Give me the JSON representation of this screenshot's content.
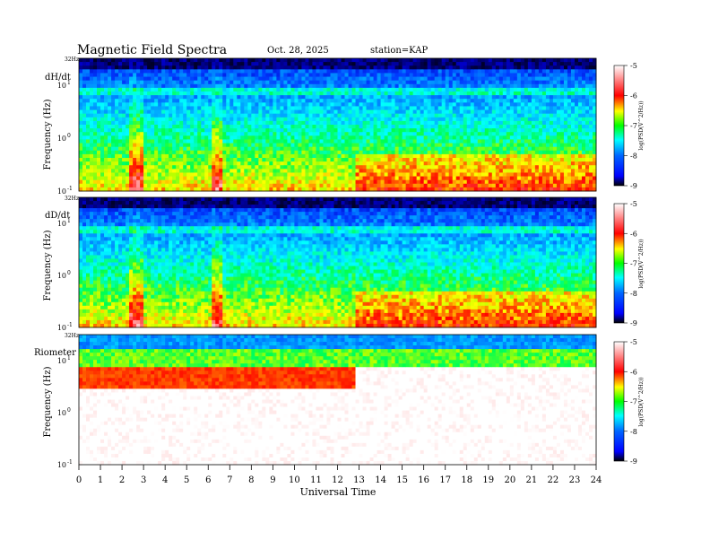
{
  "header": {
    "title": "Magnetic  Field  Spectra",
    "date": "Oct. 28, 2025",
    "station": "station=KAP"
  },
  "chart_data": [
    {
      "type": "heatmap",
      "panel_label": "dH/dt",
      "ylabel": "Frequency  (Hz)",
      "ytop_label": "32Hz",
      "yticks": [
        {
          "value": 0.1,
          "base": "10",
          "exp": "-1"
        },
        {
          "value": 1,
          "base": "10",
          "exp": "0"
        },
        {
          "value": 10,
          "base": "10",
          "exp": "1"
        }
      ],
      "ylim": [
        0.1,
        32
      ],
      "colorbar": {
        "label": "log(PSD(V^2/Hz))",
        "ticks": [
          -5,
          -6,
          -7,
          -8,
          -9
        ],
        "range": [
          -9,
          -5
        ]
      }
    },
    {
      "type": "heatmap",
      "panel_label": "dD/dt",
      "ylabel": "Frequency  (Hz)",
      "ytop_label": "32Hz",
      "yticks": [
        {
          "value": 0.1,
          "base": "10",
          "exp": "-1"
        },
        {
          "value": 1,
          "base": "10",
          "exp": "0"
        },
        {
          "value": 10,
          "base": "10",
          "exp": "1"
        }
      ],
      "ylim": [
        0.1,
        32
      ],
      "colorbar": {
        "label": "log(PSD(V^2/Hz))",
        "ticks": [
          -5,
          -6,
          -7,
          -8,
          -9
        ],
        "range": [
          -9,
          -5
        ]
      }
    },
    {
      "type": "heatmap",
      "panel_label": "Riometer",
      "ylabel": "Frequency  (Hz)",
      "ytop_label": "32Hz",
      "yticks": [
        {
          "value": 0.1,
          "base": "10",
          "exp": "-1"
        },
        {
          "value": 1,
          "base": "10",
          "exp": "0"
        },
        {
          "value": 10,
          "base": "10",
          "exp": "1"
        }
      ],
      "ylim": [
        0.1,
        32
      ],
      "colorbar": {
        "label": "log(PSD(V^2/Hz))",
        "ticks": [
          -5,
          -6,
          -7,
          -8,
          -9
        ],
        "range": [
          -9,
          -5
        ]
      }
    }
  ],
  "xaxis": {
    "label": "Universal  Time",
    "ticks": [
      "0",
      "1",
      "2",
      "3",
      "4",
      "5",
      "6",
      "7",
      "8",
      "9",
      "10",
      "11",
      "12",
      "13",
      "14",
      "15",
      "16",
      "17",
      "18",
      "19",
      "20",
      "21",
      "22",
      "23",
      "24"
    ],
    "range": [
      0,
      24
    ]
  },
  "colors": {
    "scale": [
      "#000000",
      "#0000ff",
      "#00ffff",
      "#00ff00",
      "#ffff00",
      "#ff0000",
      "#ffffff"
    ]
  }
}
